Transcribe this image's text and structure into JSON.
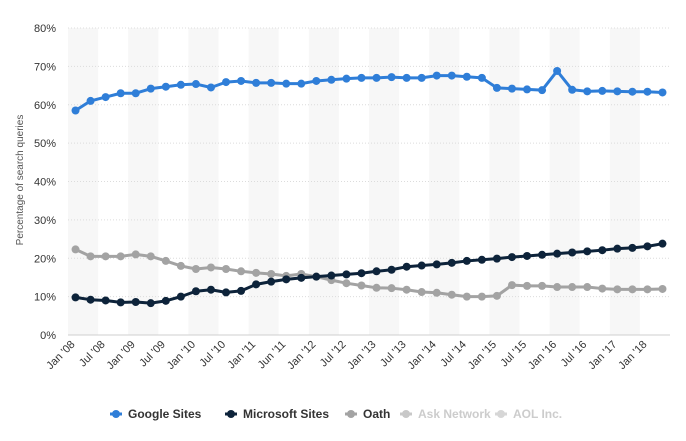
{
  "chart_data": {
    "type": "line",
    "title": "",
    "xlabel": "",
    "ylabel": "Percentage of search queries",
    "ylim": [
      0,
      80
    ],
    "yticks": [
      "0%",
      "10%",
      "20%",
      "30%",
      "40%",
      "50%",
      "60%",
      "70%",
      "80%"
    ],
    "xtick_labels": [
      "Jan '08",
      "Jul '08",
      "Jan '09",
      "Jul '09",
      "Jan '10",
      "Jul '10",
      "Jan '11",
      "Jun '11",
      "Jan '12",
      "Jul '12",
      "Jan '13",
      "Jul '13",
      "Jan '14",
      "Jul '14",
      "Jan '15",
      "Jul '15",
      "Jan '16",
      "Jul '16",
      "Jan '17",
      "Jan '18"
    ],
    "n_points": 40,
    "legend_position": "bottom",
    "series": [
      {
        "name": "Google Sites",
        "color": "#2f7ed8",
        "values": [
          58.5,
          61.0,
          62.0,
          63.0,
          63.0,
          64.2,
          64.7,
          65.2,
          65.4,
          64.5,
          65.9,
          66.2,
          65.7,
          65.7,
          65.5,
          65.5,
          66.2,
          66.5,
          66.8,
          67.0,
          67.0,
          67.2,
          67.0,
          67.0,
          67.6,
          67.6,
          67.3,
          67.0,
          64.4,
          64.2,
          64.0,
          63.8,
          68.8,
          63.9,
          63.5,
          63.6,
          63.5,
          63.4,
          63.4,
          63.2
        ]
      },
      {
        "name": "Microsoft Sites",
        "color": "#0d233a",
        "values": [
          9.8,
          9.2,
          9.0,
          8.5,
          8.6,
          8.3,
          8.9,
          10.0,
          11.4,
          11.8,
          11.1,
          11.5,
          13.2,
          13.9,
          14.5,
          14.9,
          15.2,
          15.5,
          15.8,
          16.1,
          16.6,
          17.0,
          17.8,
          18.1,
          18.4,
          18.8,
          19.3,
          19.6,
          19.9,
          20.3,
          20.6,
          20.9,
          21.2,
          21.5,
          21.8,
          22.1,
          22.5,
          22.7,
          23.1,
          23.8
        ]
      },
      {
        "name": "Oath",
        "color": "#a3a3a3",
        "values": [
          22.3,
          20.5,
          20.5,
          20.5,
          21.0,
          20.5,
          19.3,
          18.0,
          17.2,
          17.6,
          17.2,
          16.6,
          16.2,
          15.9,
          15.4,
          15.9,
          15.2,
          14.3,
          13.5,
          12.9,
          12.3,
          12.2,
          11.8,
          11.2,
          11.0,
          10.5,
          10.0,
          10.0,
          10.2,
          13.0,
          12.8,
          12.8,
          12.5,
          12.5,
          12.5,
          12.1,
          11.9,
          11.9,
          11.9,
          12.0
        ]
      },
      {
        "name": "Ask Network",
        "color": "#c8c8c8",
        "values": []
      },
      {
        "name": "AOL Inc.",
        "color": "#d6d6d6",
        "values": []
      }
    ]
  }
}
